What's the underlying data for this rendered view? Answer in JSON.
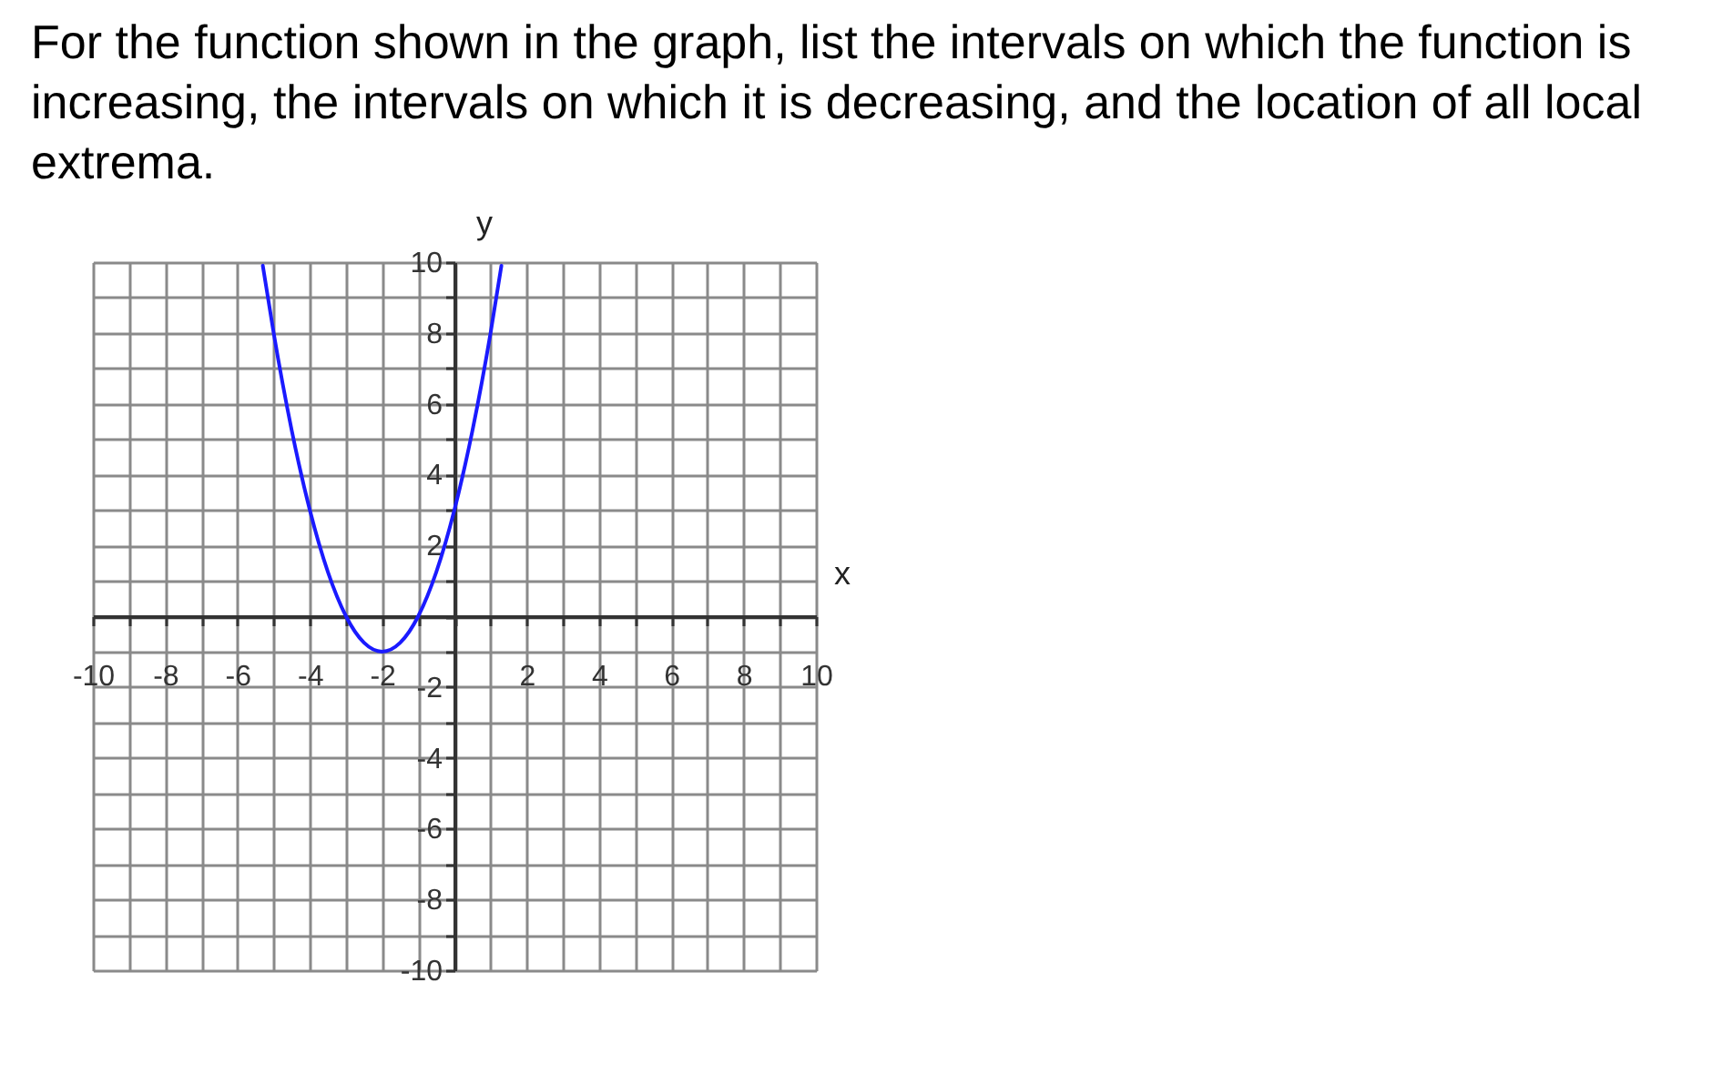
{
  "chart_data": {
    "type": "line",
    "title": "For the function shown in the graph, list the intervals on which the function is increasing, the intervals on which it is decreasing, and the location of all local extrema.",
    "xlabel": "x",
    "ylabel": "y",
    "x": [
      -5.3,
      -5,
      -4.5,
      -4,
      -3.5,
      -3,
      -2.5,
      -2,
      -1.5,
      -1,
      -0.5,
      0,
      0.5,
      1,
      1.3
    ],
    "series": [
      {
        "color": "#1a1aff",
        "values": [
          9.9,
          8,
          5.25,
          3,
          1.25,
          0,
          -0.75,
          -1,
          -0.75,
          0,
          1.25,
          3,
          5.25,
          8,
          9.9
        ]
      }
    ],
    "xlim": [
      -10,
      10
    ],
    "ylim": [
      -10,
      10
    ],
    "xticks": [
      -10,
      {
        "value": -9,
        "label": null
      },
      -8,
      {
        "value": -7,
        "label": null
      },
      -6,
      {
        "value": -5,
        "label": null
      },
      -4,
      {
        "value": -3,
        "label": null
      },
      -2,
      {
        "value": -1,
        "label": null
      },
      {
        "value": 0,
        "label": null
      },
      {
        "value": 1,
        "label": null
      },
      2,
      {
        "value": 3,
        "label": null
      },
      4,
      {
        "value": 5,
        "label": null
      },
      6,
      {
        "value": 7,
        "label": null
      },
      8,
      {
        "value": 9,
        "label": null
      },
      10
    ],
    "yticks": [
      -10,
      {
        "value": -9,
        "label": null
      },
      -8,
      {
        "value": -7,
        "label": null
      },
      -6,
      {
        "value": -5,
        "label": null
      },
      -4,
      {
        "value": -3,
        "label": null
      },
      -2,
      {
        "value": -1,
        "label": null
      },
      {
        "value": 0,
        "label": null
      },
      {
        "value": 1,
        "label": null
      },
      2,
      {
        "value": 3,
        "label": null
      },
      4,
      {
        "value": 5,
        "label": null
      },
      6,
      {
        "value": 7,
        "label": null
      },
      8,
      {
        "value": 9,
        "label": null
      },
      10
    ],
    "grid": true,
    "legend": false,
    "line_style": "solid"
  }
}
